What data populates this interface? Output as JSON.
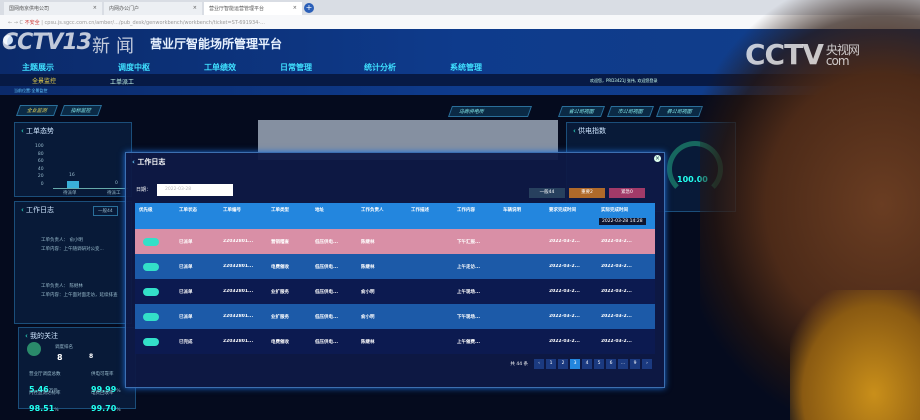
{
  "browser": {
    "tabs": [
      "国网南京供电公司",
      "内网办公门户",
      "营业厅智能运营管理平台"
    ],
    "new_tab": "+",
    "security": "不安全",
    "url": "cpsu.js.sgcc.com.cn/amber/.../pub_desk/genworkbench/workbench/ticket=ST-691934-..."
  },
  "header": {
    "title": "营业厅智能场所管理平台",
    "nav": [
      "主题展示",
      "调度中枢",
      "工单绩效",
      "日常管理",
      "统计分析",
      "系统管理"
    ],
    "sub_left": "全景监控",
    "sub_mid": "工单派工",
    "breadcrumb": "当前位置:全景监控",
    "user": "欢迎您，PRD3421J 张伟, 欢迎您登录"
  },
  "view_tabs": {
    "left": [
      "全业监测",
      "指标监控"
    ],
    "right": [
      "省公司视图",
      "市公司视图",
      "县公司视图"
    ],
    "search": "乌商供电所"
  },
  "panels": {
    "order_trend": {
      "title": "工单态势",
      "yticks": [
        "100",
        "80",
        "60",
        "40",
        "20",
        "0"
      ],
      "bars": [
        {
          "label": "待派单",
          "value": 16
        },
        {
          "label": "待派工",
          "value": 0
        }
      ]
    },
    "work_log": {
      "title": "工作日志",
      "tag": "一般44",
      "entries": [
        {
          "person": "工单负责人：",
          "name": "俞小明",
          "content": "工单内容：上午随调研对公变..."
        },
        {
          "person": "工单负责人：",
          "name": "陈继林",
          "content": "工单内容：上午面对面走访，延续排查"
        }
      ]
    },
    "focus": {
      "title": "我的关注",
      "rank_label": "调度排名",
      "rank": "8",
      "rank_change": "8",
      "metrics": [
        {
          "label": "营业厅调度总数",
          "value": "5.46",
          "unit": "万元"
        },
        {
          "label": "供电可靠率",
          "value": "99.99",
          "unit": "%"
        },
        {
          "label": "内控监测达标率",
          "value": "98.51",
          "unit": "%"
        },
        {
          "label": "电费回收率",
          "value": "99.70",
          "unit": "%"
        }
      ]
    },
    "supply": {
      "title": "供电指数",
      "gauges": [
        "100.00",
        "100.00"
      ]
    }
  },
  "modal": {
    "title": "工作日志",
    "date_label": "日期：",
    "date_value": "2022-03-28",
    "filters": [
      {
        "label": "一般44",
        "color": "#27405e"
      },
      {
        "label": "重要2",
        "color": "#b06a2a"
      },
      {
        "label": "紧急0",
        "color": "#a13a68"
      }
    ],
    "columns": [
      "优先级",
      "工单状态",
      "工单编号",
      "工单类型",
      "地址",
      "工作负责人",
      "工作描述",
      "工作内容",
      "车辆说明",
      "要求完成时间",
      "实际完成时间"
    ],
    "tooltip": "2022-03-28 14:28",
    "rows": [
      {
        "status": "已派单",
        "id": "22032801...",
        "type": "营销稽查",
        "addr": "低压供电...",
        "owner": "陈继林",
        "content": "下午汇报...",
        "due": "2022-03-2...",
        "done": "2022-03-2..."
      },
      {
        "status": "已派单",
        "id": "22032801...",
        "type": "电费催收",
        "addr": "低压供电...",
        "owner": "陈继林",
        "content": "上午走访...",
        "due": "2022-03-2...",
        "done": "2022-03-2..."
      },
      {
        "status": "已派单",
        "id": "22032801...",
        "type": "业扩服务",
        "addr": "低压供电...",
        "owner": "俞小明",
        "content": "上午现场...",
        "due": "2022-03-2...",
        "done": "2022-03-2..."
      },
      {
        "status": "已派单",
        "id": "22032801...",
        "type": "业扩服务",
        "addr": "低压供电...",
        "owner": "俞小明",
        "content": "下午现场...",
        "due": "2022-03-2...",
        "done": "2022-03-2..."
      },
      {
        "status": "已完成",
        "id": "22032801...",
        "type": "电费催收",
        "addr": "低压供电...",
        "owner": "陈继林",
        "content": "上午催费...",
        "due": "2022-03-2...",
        "done": "2022-03-2..."
      }
    ],
    "row_colors": [
      "#d98fa6",
      "#1c5aa8",
      "#0c1a50",
      "#1c5aa8",
      "#0c1a50"
    ],
    "pager": {
      "total": "共 44 条",
      "pages": [
        "1",
        "2",
        "3",
        "4",
        "5",
        "6",
        "...",
        "9"
      ],
      "current": "3"
    }
  },
  "watermark": {
    "left": "CCTV13 新闻",
    "right": "CCTV 央视网 com"
  }
}
